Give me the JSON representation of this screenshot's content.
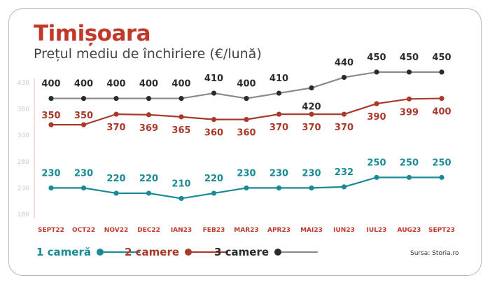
{
  "title": "Timișoara",
  "subtitle": "Prețul mediu de închiriere (€/lună)",
  "source": "Sursa: Storia.ro",
  "colors": {
    "title": "#c0392b",
    "series_1": "#1a8a94",
    "series_2": "#a83a2c",
    "series_3": "#2b2b2b",
    "series_3_line": "#8a8a8a",
    "axis": "#e8b8b0",
    "tick": "#c0392b"
  },
  "chart_data": {
    "type": "line",
    "categories": [
      "SEPT22",
      "OCT22",
      "NOV22",
      "DEC22",
      "IAN23",
      "FEB23",
      "MAR23",
      "APR23",
      "MAI23",
      "IUN23",
      "IUL23",
      "AUG23",
      "SEPT23"
    ],
    "yticks": [
      180,
      230,
      280,
      330,
      380,
      430
    ],
    "ylim": [
      180,
      460
    ],
    "grid": false,
    "legend": "bottom",
    "series": [
      {
        "name": "1 cameră",
        "values": [
          230,
          230,
          220,
          220,
          210,
          220,
          230,
          230,
          230,
          232,
          250,
          250,
          250
        ]
      },
      {
        "name": "2 camere",
        "values": [
          350,
          350,
          370,
          369,
          365,
          360,
          360,
          370,
          370,
          370,
          390,
          399,
          400
        ]
      },
      {
        "name": "3 camere",
        "values": [
          400,
          400,
          400,
          400,
          400,
          410,
          400,
          410,
          420,
          440,
          450,
          450,
          450
        ]
      }
    ]
  }
}
